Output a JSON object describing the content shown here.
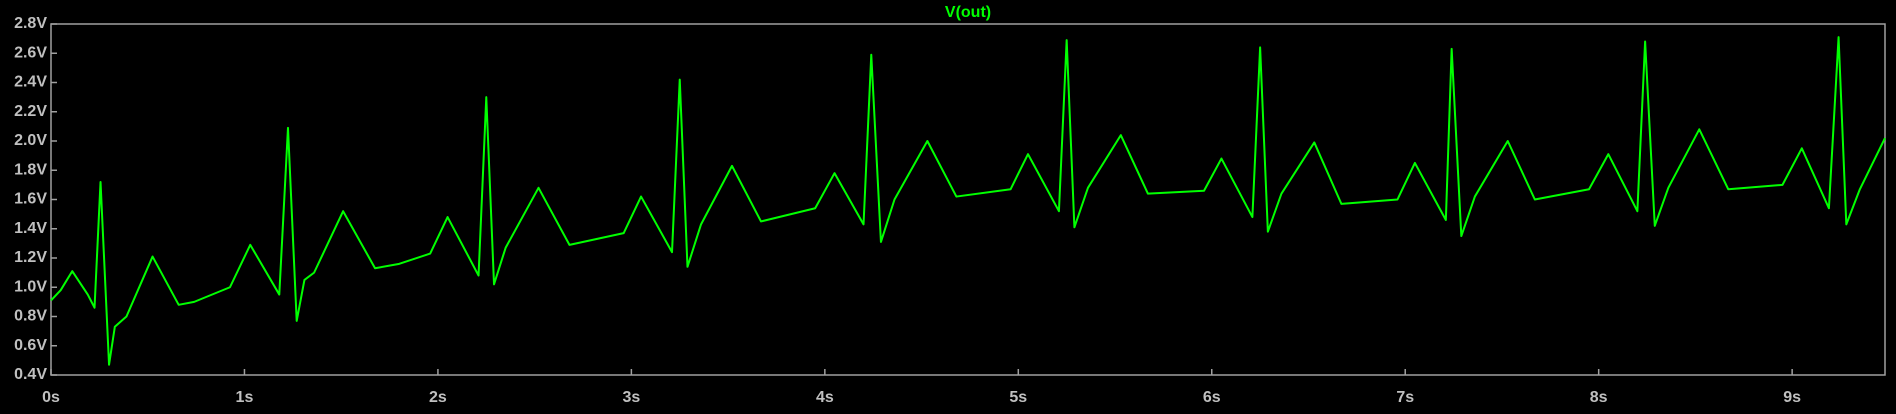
{
  "chart_data": {
    "type": "line",
    "series": [
      {
        "name": "V(out)",
        "color": "#00ff00",
        "values": [
          0.91,
          0.98,
          1.11,
          0.95,
          0.86,
          1.72,
          0.47,
          0.73,
          0.8,
          1.21,
          0.88,
          0.9,
          1.0,
          1.29,
          0.95,
          2.09,
          0.77,
          1.05,
          1.1,
          1.52,
          1.13,
          1.16,
          1.23,
          1.48,
          1.08,
          2.3,
          1.02,
          1.27,
          1.68,
          1.29,
          1.37,
          1.62,
          1.24,
          2.42,
          1.14,
          1.43,
          1.83,
          1.45,
          1.54,
          1.78,
          1.43,
          2.59,
          1.31,
          1.6,
          2.0,
          1.62,
          1.67,
          1.91,
          1.52,
          2.69,
          1.41,
          1.68,
          2.04,
          1.64,
          1.66,
          1.88,
          1.48,
          2.64,
          1.38,
          1.64,
          1.99,
          1.57,
          1.6,
          1.85,
          1.46,
          2.63,
          1.35,
          1.62,
          2.0,
          1.6,
          1.67,
          1.91,
          1.52,
          2.68,
          1.42,
          1.68,
          2.08,
          1.67,
          1.7,
          1.95,
          1.54,
          2.71,
          1.43,
          1.67,
          2.02
        ]
      }
    ],
    "x": [
      0,
      0.05,
      0.11,
      0.19,
      0.225,
      0.256,
      0.3,
      0.33,
      0.39,
      0.525,
      0.66,
      0.74,
      0.925,
      1.03,
      1.18,
      1.225,
      1.27,
      1.31,
      1.36,
      1.51,
      1.675,
      1.8,
      1.96,
      2.05,
      2.21,
      2.25,
      2.29,
      2.35,
      2.52,
      2.68,
      2.96,
      3.05,
      3.21,
      3.25,
      3.29,
      3.36,
      3.52,
      3.67,
      3.95,
      4.05,
      4.2,
      4.24,
      4.29,
      4.36,
      4.53,
      4.68,
      4.96,
      5.05,
      5.21,
      5.25,
      5.29,
      5.36,
      5.53,
      5.67,
      5.96,
      6.05,
      6.21,
      6.25,
      6.29,
      6.36,
      6.53,
      6.67,
      6.96,
      7.05,
      7.21,
      7.24,
      7.29,
      7.36,
      7.53,
      7.67,
      7.95,
      8.05,
      8.2,
      8.24,
      8.29,
      8.36,
      8.52,
      8.67,
      8.95,
      9.05,
      9.19,
      9.24,
      9.28,
      9.35,
      9.48
    ],
    "xlim": [
      0,
      9.48
    ],
    "ylim": [
      0.4,
      2.8
    ],
    "xticks": [
      {
        "value": 0,
        "label": "0s"
      },
      {
        "value": 1,
        "label": "1s"
      },
      {
        "value": 2,
        "label": "2s"
      },
      {
        "value": 3,
        "label": "3s"
      },
      {
        "value": 4,
        "label": "4s"
      },
      {
        "value": 5,
        "label": "5s"
      },
      {
        "value": 6,
        "label": "6s"
      },
      {
        "value": 7,
        "label": "7s"
      },
      {
        "value": 8,
        "label": "8s"
      },
      {
        "value": 9,
        "label": "9s"
      }
    ],
    "yticks": [
      {
        "value": 0.4,
        "label": "0.4V"
      },
      {
        "value": 0.6,
        "label": "0.6V"
      },
      {
        "value": 0.8,
        "label": "0.8V"
      },
      {
        "value": 1.0,
        "label": "1.0V"
      },
      {
        "value": 1.2,
        "label": "1.2V"
      },
      {
        "value": 1.4,
        "label": "1.4V"
      },
      {
        "value": 1.6,
        "label": "1.6V"
      },
      {
        "value": 1.8,
        "label": "1.8V"
      },
      {
        "value": 2.0,
        "label": "2.0V"
      },
      {
        "value": 2.2,
        "label": "2.2V"
      },
      {
        "value": 2.4,
        "label": "2.4V"
      },
      {
        "value": 2.6,
        "label": "2.6V"
      },
      {
        "value": 2.8,
        "label": "2.8V"
      }
    ]
  }
}
